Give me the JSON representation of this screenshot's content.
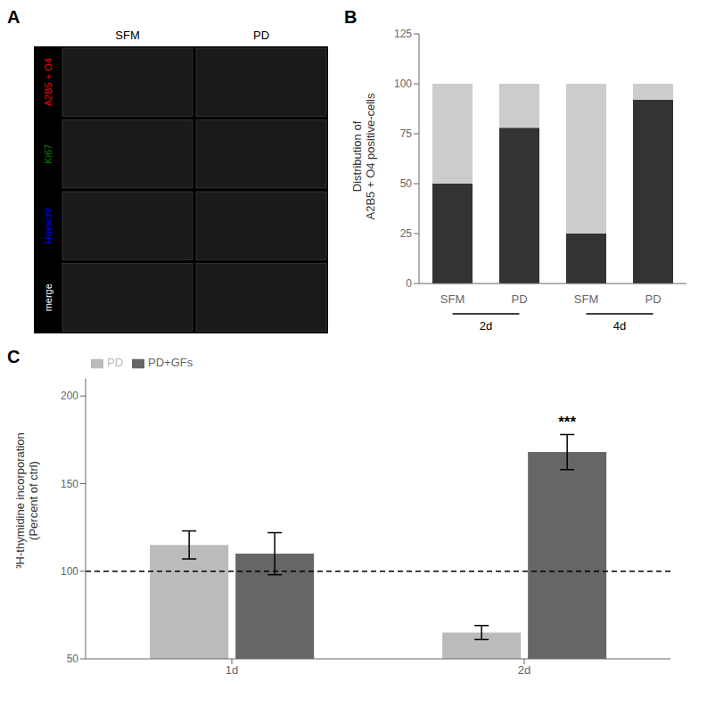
{
  "chart_data": [
    {
      "type": "image_grid",
      "title": "A",
      "categories": [
        "SFM",
        "PD"
      ],
      "series": [
        {
          "name": "A2B5 + O4",
          "color": "red"
        },
        {
          "name": "Ki67",
          "color": "green"
        },
        {
          "name": "Hoescht",
          "color": "blue"
        },
        {
          "name": "merge",
          "color": "white"
        }
      ]
    },
    {
      "type": "bar",
      "title": "B",
      "stacked": true,
      "categories": [
        "SFM",
        "PD",
        "SFM",
        "PD"
      ],
      "annotations": [
        "2d",
        "4d"
      ],
      "series": [
        {
          "color": "#333333",
          "values": [
            50,
            78,
            25,
            92
          ]
        },
        {
          "color": "#cccccc",
          "values": [
            50,
            22,
            75,
            8
          ]
        }
      ],
      "ylabel": "Distribution of\nA2B5 + O4 positive-cells",
      "ylim": [
        0,
        125
      ],
      "yticks": [
        0,
        25,
        50,
        75,
        100,
        125
      ]
    },
    {
      "type": "bar",
      "title": "C",
      "categories": [
        "1d",
        "2d"
      ],
      "series": [
        {
          "name": "PD",
          "color": "#bbbbbb",
          "values": [
            115,
            65
          ],
          "errors": [
            8,
            4
          ]
        },
        {
          "name": "PD+GFs",
          "color": "#666666",
          "values": [
            110,
            168
          ],
          "errors": [
            12,
            10
          ]
        }
      ],
      "reference_line": 100,
      "annotations": [
        {
          "text": "***",
          "category": "2d",
          "series": "PD+GFs"
        }
      ],
      "ylabel": "³H-thymidine incorporation\n(Percent of ctrl)",
      "ylim": [
        50,
        210
      ],
      "yticks": [
        50,
        100,
        150,
        200
      ],
      "legend": "upper left"
    }
  ]
}
